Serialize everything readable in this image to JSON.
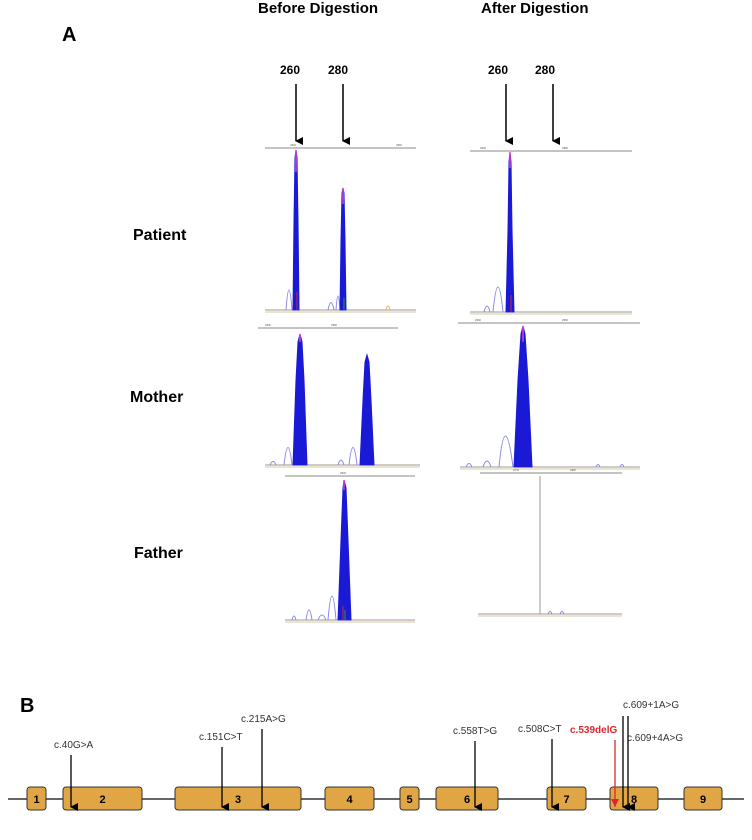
{
  "panel_a": {
    "letter": "A",
    "col_before": "Before Digestion",
    "col_after": "After Digestion",
    "size_markers": [
      "260",
      "280"
    ],
    "rows": [
      "Patient",
      "Mother",
      "Father"
    ],
    "tick_labels": {
      "patient_before": [
        "260",
        "280"
      ],
      "patient_after": [
        "260",
        "280"
      ],
      "mother_before": [
        "260",
        "280"
      ],
      "mother_after": [
        "260",
        "280"
      ],
      "father_before": [
        "260"
      ],
      "father_after": [
        "270",
        "280"
      ]
    },
    "traces": {
      "patient_before": [
        {
          "size": 260,
          "height": 0.98
        },
        {
          "size": 280,
          "height": 0.73
        }
      ],
      "patient_after": [
        {
          "size": 260,
          "height": 0.98
        }
      ],
      "mother_before": [
        {
          "size": 260,
          "height": 0.95
        },
        {
          "size": 280,
          "height": 0.7
        }
      ],
      "mother_after": [
        {
          "size": 260,
          "height": 0.98
        }
      ],
      "father_before": [
        {
          "size": 260,
          "height": 0.97
        }
      ],
      "father_after": []
    },
    "trace_color": "#1a1ad6",
    "trace_peak_color": "#e13dd6"
  },
  "panel_b": {
    "letter": "B",
    "exons": [
      "1",
      "2",
      "3",
      "4",
      "5",
      "6",
      "7",
      "8",
      "9"
    ],
    "exon_color": "#e0a646",
    "mutations": [
      {
        "label": "c.40G>A",
        "highlight": false
      },
      {
        "label": "c.151C>T",
        "highlight": false
      },
      {
        "label": "c.215A>G",
        "highlight": false
      },
      {
        "label": "c.558T>G",
        "highlight": false
      },
      {
        "label": "c.508C>T",
        "highlight": false
      },
      {
        "label": "c.539delG",
        "highlight": true
      },
      {
        "label": "c.609+1A>G",
        "highlight": false
      },
      {
        "label": "c.609+4A>G",
        "highlight": false
      }
    ],
    "highlight_color": "#e0262b"
  }
}
